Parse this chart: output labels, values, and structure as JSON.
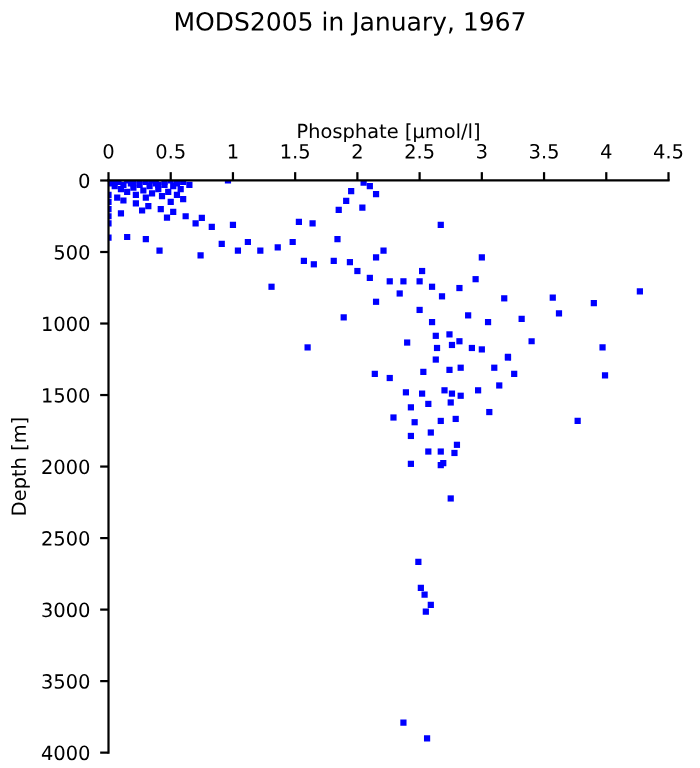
{
  "chart_data": {
    "type": "scatter",
    "title": "MODS2005 in January, 1967",
    "xlabel": "Phosphate [µmol/l]",
    "ylabel": "Depth [m]",
    "marker": "square",
    "grid": false,
    "xlim": [
      0,
      4.5
    ],
    "xticks": [
      0,
      0.5,
      1,
      1.5,
      2,
      2.5,
      3,
      3.5,
      4,
      4.5
    ],
    "ylim": [
      4000,
      0
    ],
    "yticks": [
      0,
      500,
      1000,
      1500,
      2000,
      2500,
      3000,
      3500,
      4000
    ],
    "series": [
      {
        "color": "#0000ff",
        "x": [
          0.0,
          0.0,
          0.0,
          0.0,
          0.0,
          0.0,
          0.02,
          0.05,
          0.08,
          0.1,
          0.12,
          0.15,
          0.18,
          0.2,
          0.22,
          0.25,
          0.28,
          0.3,
          0.33,
          0.35,
          0.38,
          0.4,
          0.43,
          0.45,
          0.48,
          0.5,
          0.52,
          0.55,
          0.58,
          0.6,
          0.05,
          0.1,
          0.15,
          0.2,
          0.25,
          0.3,
          0.35,
          0.4,
          0.45,
          0.5,
          0.55,
          0.6,
          0.65,
          0.12,
          0.22,
          0.32,
          0.42,
          0.52,
          0.62,
          0.07,
          0.27,
          0.47,
          0.96,
          2.05,
          2.1,
          1.95,
          1.91,
          1.85,
          2.04,
          2.15,
          2.67,
          1.64,
          1.53,
          1.0,
          0.83,
          0.75,
          0.7,
          0.15,
          0.3,
          0.41,
          0.74,
          0.91,
          1.04,
          1.12,
          1.22,
          1.36,
          1.48,
          1.57,
          1.65,
          1.81,
          1.94,
          1.84,
          2.0,
          2.21,
          2.15,
          2.1,
          2.26,
          2.37,
          2.52,
          2.5,
          1.31,
          2.15,
          2.34,
          2.6,
          2.68,
          2.82,
          2.95,
          3.0,
          3.18,
          3.57,
          3.9,
          4.27,
          1.89,
          2.5,
          2.6,
          2.89,
          3.05,
          3.32,
          3.62,
          2.63,
          2.74,
          3.4,
          3.97,
          1.6,
          2.4,
          2.82,
          3.0,
          3.21,
          2.63,
          2.76,
          2.92,
          2.64,
          2.14,
          2.26,
          2.53,
          2.74,
          2.83,
          3.1,
          3.21,
          3.26,
          3.99,
          2.39,
          2.52,
          2.7,
          2.76,
          2.83,
          2.97,
          3.14,
          2.43,
          2.57,
          2.75,
          2.29,
          2.46,
          2.67,
          2.79,
          3.06,
          3.77,
          2.43,
          2.59,
          2.57,
          2.67,
          2.78,
          2.8,
          2.43,
          2.67,
          2.69,
          2.75,
          2.49,
          2.51,
          2.54,
          2.59,
          2.55,
          2.37,
          2.56
        ],
        "values": [
          100,
          150,
          200,
          250,
          300,
          400,
          20,
          40,
          10,
          60,
          30,
          80,
          20,
          50,
          100,
          30,
          70,
          120,
          40,
          90,
          20,
          60,
          110,
          30,
          80,
          150,
          40,
          100,
          60,
          130,
          0,
          230,
          0,
          20,
          0,
          10,
          0,
          30,
          10,
          0,
          20,
          10,
          30,
          140,
          160,
          180,
          200,
          220,
          250,
          120,
          210,
          260,
          0,
          15,
          40,
          75,
          143,
          205,
          190,
          95,
          310,
          300,
          290,
          310,
          324,
          262,
          300,
          395,
          410,
          490,
          524,
          443,
          490,
          430,
          490,
          467,
          430,
          562,
          586,
          562,
          571,
          410,
          633,
          490,
          538,
          681,
          705,
          705,
          633,
          705,
          743,
          848,
          790,
          743,
          810,
          752,
          690,
          538,
          824,
          819,
          857,
          776,
          957,
          905,
          990,
          943,
          990,
          967,
          929,
          1086,
          1076,
          1124,
          1167,
          1167,
          1133,
          1124,
          1181,
          1238,
          1252,
          1150,
          1171,
          1171,
          1352,
          1381,
          1338,
          1324,
          1309,
          1309,
          1233,
          1352,
          1362,
          1481,
          1490,
          1467,
          1490,
          1505,
          1467,
          1433,
          1586,
          1562,
          1552,
          1657,
          1690,
          1681,
          1667,
          1619,
          1681,
          1786,
          1762,
          1895,
          1895,
          1905,
          1848,
          1981,
          1990,
          1976,
          2223,
          2666,
          2848,
          2895,
          2967,
          3014,
          3790,
          3900
        ]
      }
    ]
  }
}
